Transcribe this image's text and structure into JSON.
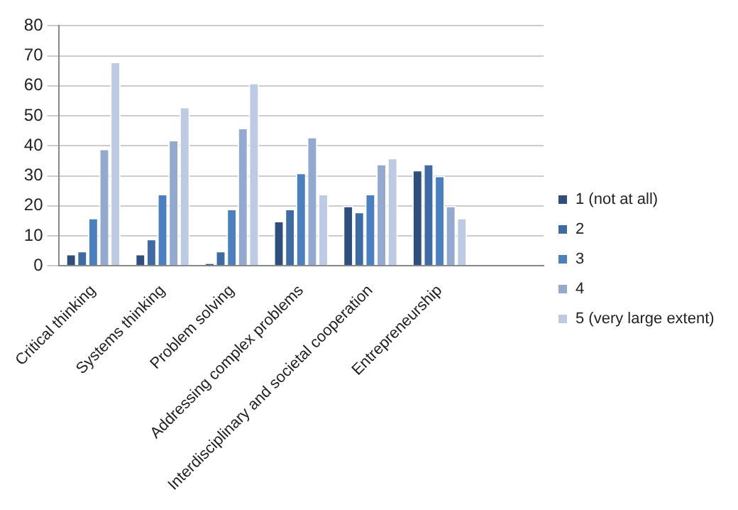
{
  "chart_data": {
    "type": "bar",
    "categories": [
      "Critical thinking",
      "Systems thinking",
      "Problem solving",
      "Addressing complex problems",
      "Interdisciplinary and societal cooperation",
      "Entrepreneurship",
      null
    ],
    "series": [
      {
        "name": "1 (not at all)",
        "color": "#2e4f7d",
        "values": [
          4,
          4,
          1,
          15,
          20,
          32,
          null
        ]
      },
      {
        "name": "2",
        "color": "#3e6ba3",
        "values": [
          5,
          9,
          5,
          19,
          18,
          34,
          null
        ]
      },
      {
        "name": "3",
        "color": "#4a7fc0",
        "values": [
          16,
          24,
          19,
          31,
          24,
          30,
          null
        ]
      },
      {
        "name": "4",
        "color": "#93a9cf",
        "values": [
          39,
          42,
          46,
          43,
          34,
          20,
          null
        ]
      },
      {
        "name": "5 (very large extent)",
        "color": "#bccbe3",
        "values": [
          68,
          53,
          61,
          24,
          36,
          16,
          null
        ]
      }
    ],
    "ylim": [
      0,
      80
    ],
    "yticks": [
      0,
      10,
      20,
      30,
      40,
      50,
      60,
      70,
      80
    ],
    "grid": "y",
    "legend": "right"
  }
}
